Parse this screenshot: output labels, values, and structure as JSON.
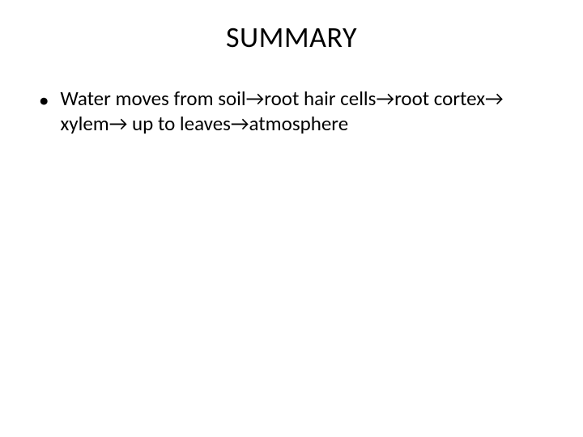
{
  "slide": {
    "title": "SUMMARY",
    "bullet_marker": "•",
    "bullet_text": "Water moves from soil→root hair cells→root cortex→ xylem→ up to leaves→atmosphere",
    "title_fontsize": 36,
    "body_fontsize": 25,
    "background_color": "#ffffff",
    "text_color": "#000000",
    "font_family": "Calibri"
  }
}
